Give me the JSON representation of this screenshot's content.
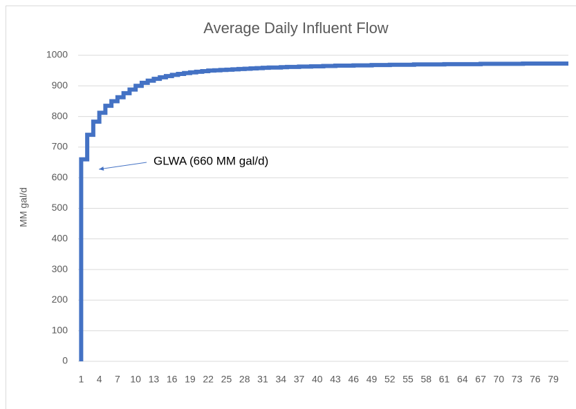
{
  "chart_data": {
    "type": "line",
    "step": true,
    "title": "Average Daily Influent Flow",
    "y_label": "MM gal/d",
    "annotation": "GLWA (660 MM gal/d)",
    "categories": [
      1,
      null,
      null,
      4,
      null,
      null,
      7,
      null,
      null,
      10,
      null,
      null,
      13,
      null,
      null,
      16,
      null,
      null,
      19,
      null,
      null,
      22,
      null,
      null,
      25,
      null,
      null,
      28,
      null,
      null,
      31,
      null,
      null,
      34,
      null,
      null,
      37,
      null,
      null,
      40,
      null,
      null,
      43,
      null,
      null,
      46,
      null,
      null,
      49,
      null,
      null,
      52,
      null,
      null,
      55,
      null,
      null,
      58,
      null,
      null,
      61,
      null,
      null,
      64,
      null,
      null,
      67,
      null,
      null,
      70,
      null,
      null,
      73,
      null,
      null,
      76,
      null,
      null,
      79,
      null,
      null
    ],
    "values": [
      660,
      740,
      783,
      812,
      835,
      850,
      863,
      876,
      888,
      900,
      910,
      917,
      923,
      928,
      932,
      936,
      939,
      942,
      944,
      946,
      948,
      950,
      951,
      952,
      953,
      954,
      955,
      956,
      957,
      958,
      959,
      960,
      960,
      961,
      962,
      962,
      963,
      963,
      964,
      964,
      965,
      965,
      966,
      966,
      966,
      967,
      967,
      967,
      968,
      968,
      968,
      969,
      969,
      969,
      969,
      970,
      970,
      970,
      970,
      970,
      971,
      971,
      971,
      971,
      971,
      971,
      972,
      972,
      972,
      972,
      972,
      972,
      972,
      973,
      973,
      973,
      973,
      973,
      973,
      973,
      973
    ],
    "color": "#4472c4",
    "ylim": [
      0,
      1000
    ],
    "yticks": [
      0,
      100,
      200,
      300,
      400,
      500,
      600,
      700,
      800,
      900,
      1000
    ],
    "grid": true
  }
}
